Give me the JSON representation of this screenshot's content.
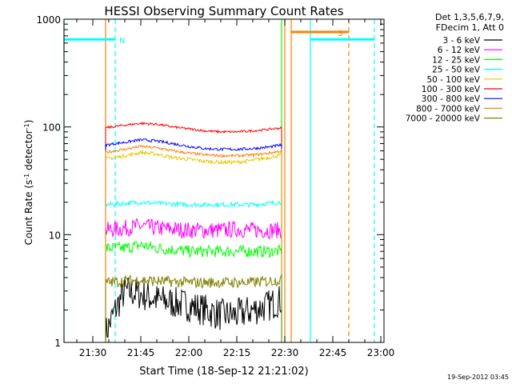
{
  "chart_data": {
    "type": "line",
    "title": "HESSI Observing Summary Count Rates",
    "xlabel": "Start Time (18-Sep-12 21:21:02)",
    "ylabel_main": "Count Rate (s",
    "ylabel_sup1": "-1",
    "ylabel_mid": " detector",
    "ylabel_sup2": "-1",
    "ylabel_end": ")",
    "y_scale": "log",
    "ylim": [
      1,
      1000
    ],
    "xlim": [
      "21:21",
      "23:01"
    ],
    "x_ticks": [
      "21:30",
      "21:45",
      "22:00",
      "22:15",
      "22:30",
      "22:45",
      "23:00"
    ],
    "y_ticks": [
      "1",
      "10",
      "100",
      "1000"
    ],
    "legend_header": [
      "Det 1,3,5,6,7,9,",
      "FDecim 1, Att 0"
    ],
    "legend_position": "right",
    "series": [
      {
        "name": "3 - 6 keV",
        "color": "#000000",
        "x": [
          "21:34",
          "21:37",
          "21:40",
          "21:45",
          "21:50",
          "22:00",
          "22:05",
          "22:10",
          "22:15",
          "22:20",
          "22:25",
          "22:29"
        ],
        "values": [
          1.2,
          2.0,
          3.0,
          2.8,
          2.5,
          2.2,
          2.0,
          1.8,
          1.8,
          2.0,
          2.2,
          2.5
        ]
      },
      {
        "name": "6 - 12 keV",
        "color": "#ff00ff",
        "x": [
          "21:34",
          "21:40",
          "21:45",
          "21:50",
          "22:00",
          "22:10",
          "22:15",
          "22:20",
          "22:25",
          "22:29"
        ],
        "values": [
          11,
          11.5,
          12,
          11.5,
          11,
          11,
          11.2,
          11,
          11,
          11
        ]
      },
      {
        "name": "12 - 25 keV",
        "color": "#00ff00",
        "x": [
          "21:34",
          "21:40",
          "21:45",
          "21:50",
          "22:00",
          "22:10",
          "22:20",
          "22:29"
        ],
        "values": [
          7.5,
          7.5,
          8,
          7.5,
          7,
          7,
          7,
          7
        ]
      },
      {
        "name": "25 - 50 keV",
        "color": "#00ffff",
        "x": [
          "21:34",
          "21:40",
          "21:45",
          "21:50",
          "22:00",
          "22:10",
          "22:20",
          "22:29"
        ],
        "values": [
          19,
          19.5,
          20,
          19.5,
          19,
          19,
          19,
          20
        ]
      },
      {
        "name": "50 - 100 keV",
        "color": "#e6c800",
        "x": [
          "21:34",
          "21:40",
          "21:45",
          "21:50",
          "21:55",
          "22:00",
          "22:05",
          "22:10",
          "22:15",
          "22:20",
          "22:25",
          "22:29"
        ],
        "values": [
          50,
          54,
          58,
          56,
          52,
          50,
          48,
          47,
          47,
          49,
          52,
          55
        ]
      },
      {
        "name": "100 - 300 keV",
        "color": "#ff0000",
        "x": [
          "21:34",
          "21:40",
          "21:45",
          "21:50",
          "21:55",
          "22:00",
          "22:05",
          "22:10",
          "22:15",
          "22:20",
          "22:25",
          "22:29"
        ],
        "values": [
          98,
          104,
          108,
          106,
          100,
          96,
          92,
          90,
          90,
          92,
          95,
          98
        ]
      },
      {
        "name": "300 - 800 keV",
        "color": "#0000ff",
        "x": [
          "21:34",
          "21:40",
          "21:45",
          "21:50",
          "21:55",
          "22:00",
          "22:05",
          "22:10",
          "22:15",
          "22:20",
          "22:25",
          "22:29"
        ],
        "values": [
          68,
          72,
          76,
          74,
          70,
          66,
          63,
          62,
          62,
          63,
          65,
          68
        ]
      },
      {
        "name": "800 - 7000 keV",
        "color": "#ff8000",
        "x": [
          "21:34",
          "21:40",
          "21:45",
          "21:50",
          "21:55",
          "22:00",
          "22:05",
          "22:10",
          "22:15",
          "22:20",
          "22:25",
          "22:29"
        ],
        "values": [
          58,
          62,
          66,
          64,
          60,
          57,
          55,
          54,
          54,
          55,
          57,
          60
        ]
      },
      {
        "name": "7000 - 20000 keV",
        "color": "#808000",
        "x": [
          "21:34",
          "21:40",
          "21:45",
          "21:50",
          "22:00",
          "22:10",
          "22:20",
          "22:29"
        ],
        "values": [
          3.6,
          3.7,
          3.8,
          3.7,
          3.6,
          3.6,
          3.6,
          3.8
        ]
      }
    ],
    "flags": [
      {
        "label": "N",
        "color": "#00ffff",
        "x_start": "21:21",
        "x_end": "21:37",
        "level": 650
      },
      {
        "label": "S",
        "color": "#ff8000",
        "x_start": "22:32",
        "x_end": "22:50",
        "level": 760
      },
      {
        "label": "",
        "color": "#00ffff",
        "x_start": "22:38",
        "x_end": "22:58",
        "level": 650
      }
    ],
    "vlines": [
      {
        "color": "#00ffff",
        "x": "21:21",
        "style": "solid"
      },
      {
        "color": "#00ffff",
        "x": "21:37",
        "style": "dashed"
      },
      {
        "color": "#ff8000",
        "x": "21:34",
        "style": "solid"
      },
      {
        "color": "#ff8000",
        "x": "22:30",
        "style": "solid"
      },
      {
        "color": "#00ff00",
        "x": "22:29",
        "style": "solid"
      },
      {
        "color": "#ff8000",
        "x": "22:32",
        "style": "solid"
      },
      {
        "color": "#00ffff",
        "x": "22:38",
        "style": "solid"
      },
      {
        "color": "#ff8000",
        "x": "22:50",
        "style": "dashed"
      },
      {
        "color": "#00ffff",
        "x": "22:58",
        "style": "dashed"
      }
    ],
    "grid": false
  },
  "timestamp": "19-Sep-2012 03:45"
}
